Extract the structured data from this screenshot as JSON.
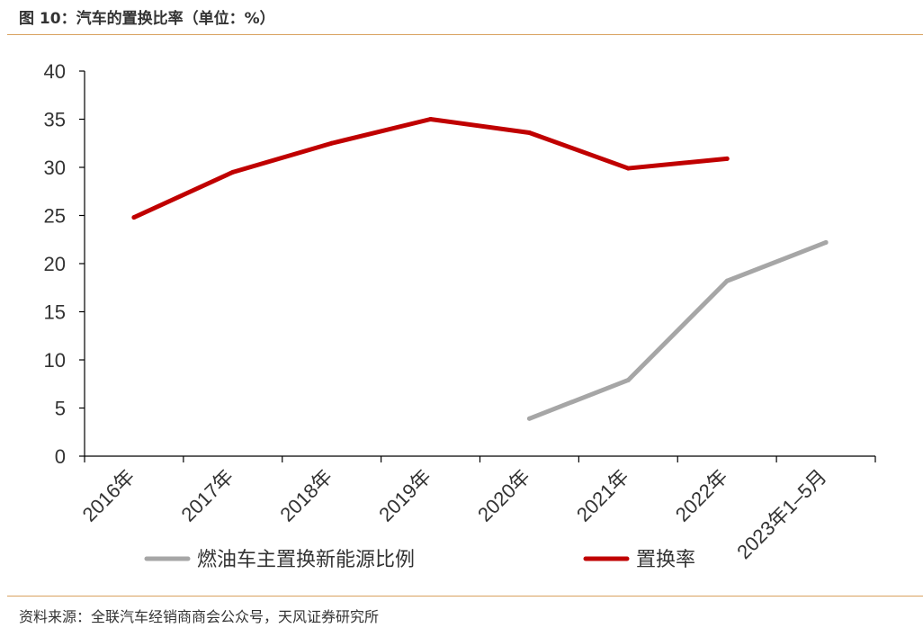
{
  "figure_title": "图 10：汽车的置换比率（单位：%）",
  "source": "资料来源：全联汽车经销商商会公众号，天风证券研究所",
  "colors": {
    "rule": "#d9a25f",
    "red": "#c00000",
    "gray": "#a6a6a6"
  },
  "chart_data": {
    "type": "line",
    "categories": [
      "2016年",
      "2017年",
      "2018年",
      "2019年",
      "2020年",
      "2021年",
      "2022年",
      "2023年1–5月"
    ],
    "ylim": [
      0,
      40
    ],
    "yticks": [
      0,
      5,
      10,
      15,
      20,
      25,
      30,
      35,
      40
    ],
    "grid": false,
    "legend_position": "bottom",
    "series": [
      {
        "name": "燃油车主置换新能源比例",
        "color": "#a6a6a6",
        "values": [
          null,
          null,
          null,
          null,
          3.9,
          7.9,
          18.2,
          22.2
        ]
      },
      {
        "name": "置换率",
        "color": "#c00000",
        "values": [
          24.8,
          29.5,
          32.5,
          35.0,
          33.6,
          29.9,
          30.9,
          null
        ]
      }
    ]
  }
}
